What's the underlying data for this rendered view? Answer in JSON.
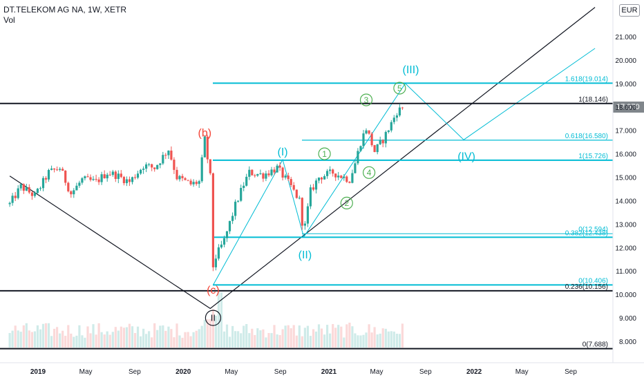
{
  "header": {
    "title": "DT.TELEKOM AG NA, 1W, XETR",
    "volume_label": "Vol",
    "currency": "EUR",
    "last_price": "17.970"
  },
  "colors": {
    "up": "#26a69a",
    "down": "#ef5350",
    "fib": "#00bcd4",
    "wave_green": "#4caf50",
    "wave_red": "#f44336",
    "trendline": "#131722",
    "price_tag": "#80868b"
  },
  "chart_data": {
    "type": "candlestick",
    "symbol": "DT.TELEKOM AG NA",
    "interval": "1W",
    "exchange": "XETR",
    "currency": "EUR",
    "ylim": [
      7.3,
      22.4
    ],
    "y_ticks": [
      "8.000",
      "9.000",
      "10.000",
      "11.000",
      "12.000",
      "13.000",
      "14.000",
      "15.000",
      "16.000",
      "17.000",
      "18.000",
      "19.000",
      "20.000",
      "21.000"
    ],
    "x_ticks": [
      {
        "label": "2019",
        "date": "2019-01-01"
      },
      {
        "label": "May",
        "date": "2019-05-01"
      },
      {
        "label": "Sep",
        "date": "2019-09-01"
      },
      {
        "label": "2020",
        "date": "2020-01-01"
      },
      {
        "label": "May",
        "date": "2020-05-01"
      },
      {
        "label": "Sep",
        "date": "2020-09-01"
      },
      {
        "label": "2021",
        "date": "2021-01-01"
      },
      {
        "label": "May",
        "date": "2021-05-01"
      },
      {
        "label": "Sep",
        "date": "2021-09-01"
      },
      {
        "label": "2022",
        "date": "2022-01-01"
      },
      {
        "label": "May",
        "date": "2022-05-01"
      },
      {
        "label": "Sep",
        "date": "2022-09-01"
      }
    ],
    "price_path": [
      [
        "2018-10-22",
        13.85
      ],
      [
        "2018-11-19",
        14.6
      ],
      [
        "2018-12-24",
        14.2
      ],
      [
        "2019-01-28",
        15.2
      ],
      [
        "2019-02-25",
        15.4
      ],
      [
        "2019-03-25",
        14.3
      ],
      [
        "2019-04-22",
        14.9
      ],
      [
        "2019-05-27",
        14.8
      ],
      [
        "2019-06-24",
        15.2
      ],
      [
        "2019-07-15",
        15.1
      ],
      [
        "2019-08-19",
        14.8
      ],
      [
        "2019-09-23",
        15.5
      ],
      [
        "2019-10-21",
        15.4
      ],
      [
        "2019-11-25",
        16.2
      ],
      [
        "2019-12-16",
        15.0
      ],
      [
        "2020-01-20",
        14.7
      ],
      [
        "2020-02-10",
        14.8
      ],
      [
        "2020-02-24",
        16.6
      ],
      [
        "2020-03-09",
        15.0
      ],
      [
        "2020-03-16",
        11.2
      ],
      [
        "2020-03-23",
        11.6
      ],
      [
        "2020-04-13",
        12.3
      ],
      [
        "2020-05-11",
        13.8
      ],
      [
        "2020-06-01",
        14.7
      ],
      [
        "2020-06-15",
        15.2
      ],
      [
        "2020-07-20",
        15.1
      ],
      [
        "2020-08-24",
        15.4
      ],
      [
        "2020-09-28",
        14.6
      ],
      [
        "2020-10-19",
        14.0
      ],
      [
        "2020-10-30",
        12.6
      ],
      [
        "2020-11-16",
        14.4
      ],
      [
        "2020-12-07",
        15.0
      ],
      [
        "2021-01-11",
        15.2
      ],
      [
        "2021-02-22",
        14.9
      ],
      [
        "2021-03-08",
        15.6
      ],
      [
        "2021-03-22",
        16.5
      ],
      [
        "2021-04-05",
        17.1
      ],
      [
        "2021-04-26",
        16.1
      ],
      [
        "2021-05-17",
        16.6
      ],
      [
        "2021-06-07",
        17.3
      ],
      [
        "2021-06-21",
        17.8
      ],
      [
        "2021-07-05",
        17.97
      ]
    ],
    "last_price": 17.97,
    "fib_levels": [
      {
        "label": "1.618(19.014)",
        "value": 19.014
      },
      {
        "label": "1(18.146)",
        "value": 18.146
      },
      {
        "label": "0.618(16.580)",
        "value": 16.58
      },
      {
        "label": "1(15.726)",
        "value": 15.726
      },
      {
        "label": "0(12.594)",
        "value": 12.594
      },
      {
        "label": "0.382(12.438)",
        "value": 12.438
      },
      {
        "label": "0(10.406)",
        "value": 10.406
      },
      {
        "label": "0.236(10.156)",
        "value": 10.156
      },
      {
        "label": "0(7.688)",
        "value": 7.688
      }
    ],
    "wave_labels": [
      {
        "text": "(b)",
        "date": "2020-02-24",
        "price": 16.9,
        "color": "red"
      },
      {
        "text": "(c)",
        "date": "2020-03-16",
        "price": 10.2,
        "color": "red"
      },
      {
        "text": "II",
        "date": "2020-03-16",
        "price": 9.0,
        "color": "black",
        "circled": true
      },
      {
        "text": "(I)",
        "date": "2020-09-07",
        "price": 16.1,
        "color": "fib"
      },
      {
        "text": "(II)",
        "date": "2020-11-02",
        "price": 11.7,
        "color": "fib"
      },
      {
        "text": "(III)",
        "date": "2021-07-26",
        "price": 19.6,
        "color": "fib"
      },
      {
        "text": "(IV)",
        "date": "2021-12-13",
        "price": 15.9,
        "color": "fib"
      },
      {
        "text": "1",
        "date": "2020-12-21",
        "price": 16.0,
        "color": "green",
        "circled": true
      },
      {
        "text": "2",
        "date": "2021-02-15",
        "price": 13.9,
        "color": "green",
        "circled": true
      },
      {
        "text": "3",
        "date": "2021-04-05",
        "price": 18.3,
        "color": "green",
        "circled": true
      },
      {
        "text": "4",
        "date": "2021-04-12",
        "price": 15.2,
        "color": "green",
        "circled": true
      },
      {
        "text": "5",
        "date": "2021-06-28",
        "price": 18.8,
        "color": "green",
        "circled": true
      }
    ]
  }
}
